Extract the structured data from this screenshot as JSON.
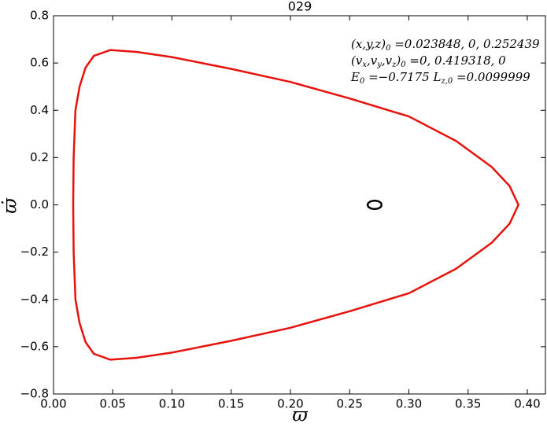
{
  "chart_data": {
    "type": "line",
    "title": "029",
    "xlabel": "ϖ",
    "ylabel": "ϖ̇",
    "xlim": [
      0,
      0.4153
    ],
    "ylim": [
      -0.8,
      0.8
    ],
    "xticks": [
      {
        "value": 0,
        "label": "0.00"
      },
      0.05,
      {
        "value": 0.1,
        "label": "0.10"
      },
      0.15,
      {
        "value": 0.2,
        "label": "0.20"
      },
      0.25,
      {
        "value": 0.3,
        "label": "0.30"
      },
      0.35,
      {
        "value": 0.4,
        "label": "0.40"
      }
    ],
    "yticks": [
      {
        "value": -0.8,
        "label": "−0.8"
      },
      {
        "value": -0.6,
        "label": "−0.6"
      },
      {
        "value": -0.4,
        "label": "−0.4"
      },
      {
        "value": -0.2,
        "label": "−0.2"
      },
      {
        "value": 0,
        "label": "0.0"
      },
      0.2,
      0.4,
      0.6,
      0.8
    ],
    "grid": false,
    "annotations": [
      [
        {
          "t": "(x,y,z)"
        },
        {
          "s": "0"
        },
        {
          "t": " =0.023848, 0, 0.252439"
        }
      ],
      [
        {
          "t": "(v"
        },
        {
          "s": "x"
        },
        {
          "t": ",v"
        },
        {
          "s": "y"
        },
        {
          "t": ",v"
        },
        {
          "s": "z"
        },
        {
          "t": ")"
        },
        {
          "s": "0"
        },
        {
          "t": " =0, 0.419318, 0"
        }
      ],
      [
        {
          "t": "E"
        },
        {
          "s": "0"
        },
        {
          "t": " =−0.7175  L"
        },
        {
          "s": "z,0"
        },
        {
          "t": " =0.0099999"
        }
      ]
    ],
    "series": [
      {
        "color": "#e8120c",
        "x": [
          0.0166,
          0.017,
          0.0185,
          0.022,
          0.027,
          0.034,
          0.048,
          0.07,
          0.1,
          0.15,
          0.2,
          0.25,
          0.3,
          0.34,
          0.37,
          0.385,
          0.3925,
          0.385,
          0.37,
          0.34,
          0.3,
          0.25,
          0.2,
          0.15,
          0.1,
          0.07,
          0.048,
          0.034,
          0.027,
          0.022,
          0.0185,
          0.017,
          0.0166
        ],
        "values": [
          0,
          0.2,
          0.4,
          0.5,
          0.58,
          0.63,
          0.655,
          0.647,
          0.625,
          0.575,
          0.52,
          0.45,
          0.374,
          0.27,
          0.16,
          0.08,
          0,
          -0.08,
          -0.16,
          -0.27,
          -0.374,
          -0.45,
          -0.52,
          -0.575,
          -0.625,
          -0.647,
          -0.655,
          -0.63,
          -0.58,
          -0.5,
          -0.4,
          -0.2,
          0
        ]
      },
      {
        "color": "#000000",
        "x": [
          0.2771,
          0.2763,
          0.2741,
          0.2711,
          0.2681,
          0.2659,
          0.2651,
          0.2659,
          0.2681,
          0.2711,
          0.2741,
          0.2763,
          0.2771
        ],
        "values": [
          0,
          0.009,
          0.0156,
          0.018,
          0.0156,
          0.009,
          0,
          -0.009,
          -0.0156,
          -0.018,
          -0.0156,
          -0.009,
          0
        ]
      }
    ]
  }
}
